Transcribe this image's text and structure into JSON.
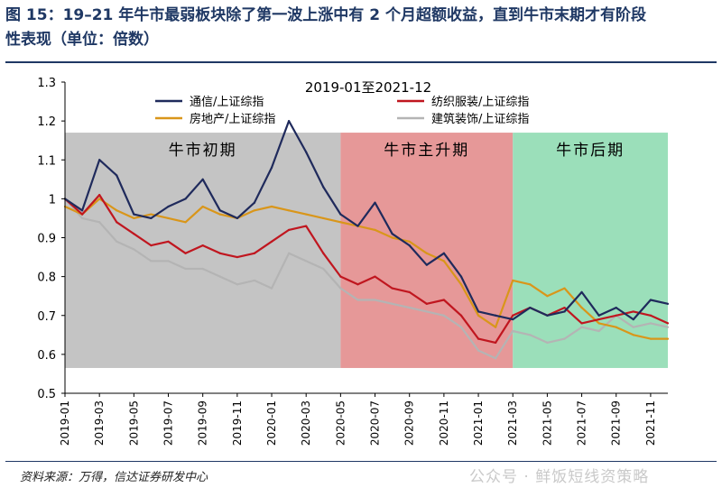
{
  "figure": {
    "title_line1": "图 15：19–21 年牛市最弱板块除了第一波上涨中有 2 个月超额收益，直到牛市末期才有阶段",
    "title_line2": "性表现（单位：倍数）",
    "source": "资料来源：万得，信达证券研发中心",
    "watermark": "公众号 · 鲜饭短线资策略"
  },
  "chart_data": {
    "type": "line",
    "title": "2019-01至2021-12",
    "xlabel": "",
    "ylabel": "",
    "ylim": [
      0.5,
      1.3
    ],
    "yticks": [
      "0.5",
      "0.6",
      "0.7",
      "0.8",
      "0.9",
      "1",
      "1.1",
      "1.2",
      "1.3"
    ],
    "x": [
      "2019-01",
      "2019-02",
      "2019-03",
      "2019-04",
      "2019-05",
      "2019-06",
      "2019-07",
      "2019-08",
      "2019-09",
      "2019-10",
      "2019-11",
      "2019-12",
      "2020-01",
      "2020-02",
      "2020-03",
      "2020-04",
      "2020-05",
      "2020-06",
      "2020-07",
      "2020-08",
      "2020-09",
      "2020-10",
      "2020-11",
      "2020-12",
      "2021-01",
      "2021-02",
      "2021-03",
      "2021-04",
      "2021-05",
      "2021-06",
      "2021-07",
      "2021-08",
      "2021-09",
      "2021-10",
      "2021-11",
      "2021-12"
    ],
    "xticks": [
      "2019-01",
      "2019-03",
      "2019-05",
      "2019-07",
      "2019-09",
      "2019-11",
      "2020-01",
      "2020-03",
      "2020-05",
      "2020-07",
      "2020-09",
      "2020-11",
      "2021-01",
      "2021-03",
      "2021-05",
      "2021-07",
      "2021-09",
      "2021-11"
    ],
    "grid": false,
    "legend_position": "top",
    "series": [
      {
        "name": "通信/上证综指",
        "color": "#1f2a5c",
        "values": [
          1.0,
          0.97,
          1.1,
          1.06,
          0.96,
          0.95,
          0.98,
          1.0,
          1.05,
          0.97,
          0.95,
          0.99,
          1.08,
          1.2,
          1.12,
          1.03,
          0.96,
          0.93,
          0.99,
          0.91,
          0.88,
          0.83,
          0.86,
          0.8,
          0.71,
          0.7,
          0.69,
          0.72,
          0.7,
          0.71,
          0.76,
          0.7,
          0.72,
          0.69,
          0.74,
          0.73
        ]
      },
      {
        "name": "纺织服装/上证综指",
        "color": "#c0161f",
        "values": [
          1.0,
          0.96,
          1.01,
          0.94,
          0.91,
          0.88,
          0.89,
          0.86,
          0.88,
          0.86,
          0.85,
          0.86,
          0.89,
          0.92,
          0.93,
          0.86,
          0.8,
          0.78,
          0.8,
          0.77,
          0.76,
          0.73,
          0.74,
          0.7,
          0.64,
          0.63,
          0.7,
          0.72,
          0.7,
          0.72,
          0.68,
          0.69,
          0.7,
          0.71,
          0.7,
          0.68
        ]
      },
      {
        "name": "房地产/上证综指",
        "color": "#d9961a",
        "values": [
          0.98,
          0.96,
          1.0,
          0.97,
          0.95,
          0.96,
          0.95,
          0.94,
          0.98,
          0.96,
          0.95,
          0.97,
          0.98,
          0.97,
          0.96,
          0.95,
          0.94,
          0.93,
          0.92,
          0.9,
          0.89,
          0.86,
          0.84,
          0.78,
          0.7,
          0.67,
          0.79,
          0.78,
          0.75,
          0.77,
          0.72,
          0.68,
          0.67,
          0.65,
          0.64,
          0.64
        ]
      },
      {
        "name": "建筑装饰/上证综指",
        "color": "#b4b4b4",
        "values": [
          1.0,
          0.95,
          0.94,
          0.89,
          0.87,
          0.84,
          0.84,
          0.82,
          0.82,
          0.8,
          0.78,
          0.79,
          0.77,
          0.86,
          0.84,
          0.82,
          0.77,
          0.74,
          0.74,
          0.73,
          0.72,
          0.71,
          0.7,
          0.67,
          0.61,
          0.59,
          0.66,
          0.65,
          0.63,
          0.64,
          0.67,
          0.66,
          0.7,
          0.67,
          0.68,
          0.67
        ]
      }
    ],
    "phases": [
      {
        "label": "牛市初期",
        "start": "2019-01",
        "end": "2020-05",
        "color": "#bfbfbf"
      },
      {
        "label": "牛市主升期",
        "start": "2020-05",
        "end": "2021-03",
        "color": "#e48f8f"
      },
      {
        "label": "牛市后期",
        "start": "2021-03",
        "end": "2021-12",
        "color": "#93dcb4"
      }
    ]
  }
}
